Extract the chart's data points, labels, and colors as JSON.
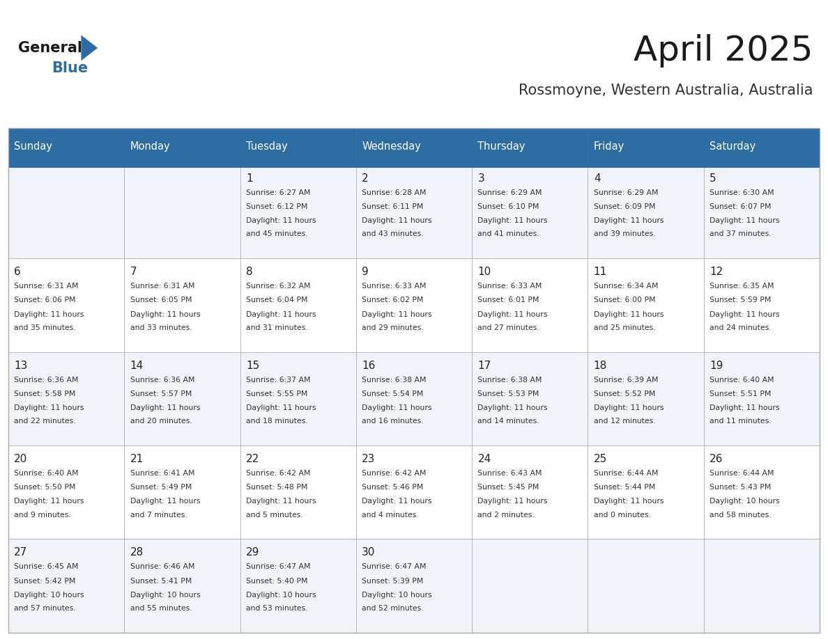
{
  "title": "April 2025",
  "subtitle": "Rossmoyne, Western Australia, Australia",
  "header_bg_color": "#2E6DA4",
  "header_text_color": "#FFFFFF",
  "cell_bg_color_even": "#F0F4F8",
  "cell_bg_color_odd": "#FFFFFF",
  "cell_text_color": "#333333",
  "border_color": "#2E6DA4",
  "days_of_week": [
    "Sunday",
    "Monday",
    "Tuesday",
    "Wednesday",
    "Thursday",
    "Friday",
    "Saturday"
  ],
  "weeks": [
    [
      {
        "day": "",
        "sunrise": "",
        "sunset": "",
        "daylight": ""
      },
      {
        "day": "",
        "sunrise": "",
        "sunset": "",
        "daylight": ""
      },
      {
        "day": "1",
        "sunrise": "Sunrise: 6:27 AM",
        "sunset": "Sunset: 6:12 PM",
        "daylight": "Daylight: 11 hours\nand 45 minutes."
      },
      {
        "day": "2",
        "sunrise": "Sunrise: 6:28 AM",
        "sunset": "Sunset: 6:11 PM",
        "daylight": "Daylight: 11 hours\nand 43 minutes."
      },
      {
        "day": "3",
        "sunrise": "Sunrise: 6:29 AM",
        "sunset": "Sunset: 6:10 PM",
        "daylight": "Daylight: 11 hours\nand 41 minutes."
      },
      {
        "day": "4",
        "sunrise": "Sunrise: 6:29 AM",
        "sunset": "Sunset: 6:09 PM",
        "daylight": "Daylight: 11 hours\nand 39 minutes."
      },
      {
        "day": "5",
        "sunrise": "Sunrise: 6:30 AM",
        "sunset": "Sunset: 6:07 PM",
        "daylight": "Daylight: 11 hours\nand 37 minutes."
      }
    ],
    [
      {
        "day": "6",
        "sunrise": "Sunrise: 6:31 AM",
        "sunset": "Sunset: 6:06 PM",
        "daylight": "Daylight: 11 hours\nand 35 minutes."
      },
      {
        "day": "7",
        "sunrise": "Sunrise: 6:31 AM",
        "sunset": "Sunset: 6:05 PM",
        "daylight": "Daylight: 11 hours\nand 33 minutes."
      },
      {
        "day": "8",
        "sunrise": "Sunrise: 6:32 AM",
        "sunset": "Sunset: 6:04 PM",
        "daylight": "Daylight: 11 hours\nand 31 minutes."
      },
      {
        "day": "9",
        "sunrise": "Sunrise: 6:33 AM",
        "sunset": "Sunset: 6:02 PM",
        "daylight": "Daylight: 11 hours\nand 29 minutes."
      },
      {
        "day": "10",
        "sunrise": "Sunrise: 6:33 AM",
        "sunset": "Sunset: 6:01 PM",
        "daylight": "Daylight: 11 hours\nand 27 minutes."
      },
      {
        "day": "11",
        "sunrise": "Sunrise: 6:34 AM",
        "sunset": "Sunset: 6:00 PM",
        "daylight": "Daylight: 11 hours\nand 25 minutes."
      },
      {
        "day": "12",
        "sunrise": "Sunrise: 6:35 AM",
        "sunset": "Sunset: 5:59 PM",
        "daylight": "Daylight: 11 hours\nand 24 minutes."
      }
    ],
    [
      {
        "day": "13",
        "sunrise": "Sunrise: 6:36 AM",
        "sunset": "Sunset: 5:58 PM",
        "daylight": "Daylight: 11 hours\nand 22 minutes."
      },
      {
        "day": "14",
        "sunrise": "Sunrise: 6:36 AM",
        "sunset": "Sunset: 5:57 PM",
        "daylight": "Daylight: 11 hours\nand 20 minutes."
      },
      {
        "day": "15",
        "sunrise": "Sunrise: 6:37 AM",
        "sunset": "Sunset: 5:55 PM",
        "daylight": "Daylight: 11 hours\nand 18 minutes."
      },
      {
        "day": "16",
        "sunrise": "Sunrise: 6:38 AM",
        "sunset": "Sunset: 5:54 PM",
        "daylight": "Daylight: 11 hours\nand 16 minutes."
      },
      {
        "day": "17",
        "sunrise": "Sunrise: 6:38 AM",
        "sunset": "Sunset: 5:53 PM",
        "daylight": "Daylight: 11 hours\nand 14 minutes."
      },
      {
        "day": "18",
        "sunrise": "Sunrise: 6:39 AM",
        "sunset": "Sunset: 5:52 PM",
        "daylight": "Daylight: 11 hours\nand 12 minutes."
      },
      {
        "day": "19",
        "sunrise": "Sunrise: 6:40 AM",
        "sunset": "Sunset: 5:51 PM",
        "daylight": "Daylight: 11 hours\nand 11 minutes."
      }
    ],
    [
      {
        "day": "20",
        "sunrise": "Sunrise: 6:40 AM",
        "sunset": "Sunset: 5:50 PM",
        "daylight": "Daylight: 11 hours\nand 9 minutes."
      },
      {
        "day": "21",
        "sunrise": "Sunrise: 6:41 AM",
        "sunset": "Sunset: 5:49 PM",
        "daylight": "Daylight: 11 hours\nand 7 minutes."
      },
      {
        "day": "22",
        "sunrise": "Sunrise: 6:42 AM",
        "sunset": "Sunset: 5:48 PM",
        "daylight": "Daylight: 11 hours\nand 5 minutes."
      },
      {
        "day": "23",
        "sunrise": "Sunrise: 6:42 AM",
        "sunset": "Sunset: 5:46 PM",
        "daylight": "Daylight: 11 hours\nand 4 minutes."
      },
      {
        "day": "24",
        "sunrise": "Sunrise: 6:43 AM",
        "sunset": "Sunset: 5:45 PM",
        "daylight": "Daylight: 11 hours\nand 2 minutes."
      },
      {
        "day": "25",
        "sunrise": "Sunrise: 6:44 AM",
        "sunset": "Sunset: 5:44 PM",
        "daylight": "Daylight: 11 hours\nand 0 minutes."
      },
      {
        "day": "26",
        "sunrise": "Sunrise: 6:44 AM",
        "sunset": "Sunset: 5:43 PM",
        "daylight": "Daylight: 10 hours\nand 58 minutes."
      }
    ],
    [
      {
        "day": "27",
        "sunrise": "Sunrise: 6:45 AM",
        "sunset": "Sunset: 5:42 PM",
        "daylight": "Daylight: 10 hours\nand 57 minutes."
      },
      {
        "day": "28",
        "sunrise": "Sunrise: 6:46 AM",
        "sunset": "Sunset: 5:41 PM",
        "daylight": "Daylight: 10 hours\nand 55 minutes."
      },
      {
        "day": "29",
        "sunrise": "Sunrise: 6:47 AM",
        "sunset": "Sunset: 5:40 PM",
        "daylight": "Daylight: 10 hours\nand 53 minutes."
      },
      {
        "day": "30",
        "sunrise": "Sunrise: 6:47 AM",
        "sunset": "Sunset: 5:39 PM",
        "daylight": "Daylight: 10 hours\nand 52 minutes."
      },
      {
        "day": "",
        "sunrise": "",
        "sunset": "",
        "daylight": ""
      },
      {
        "day": "",
        "sunrise": "",
        "sunset": "",
        "daylight": ""
      },
      {
        "day": "",
        "sunrise": "",
        "sunset": "",
        "daylight": ""
      }
    ]
  ]
}
